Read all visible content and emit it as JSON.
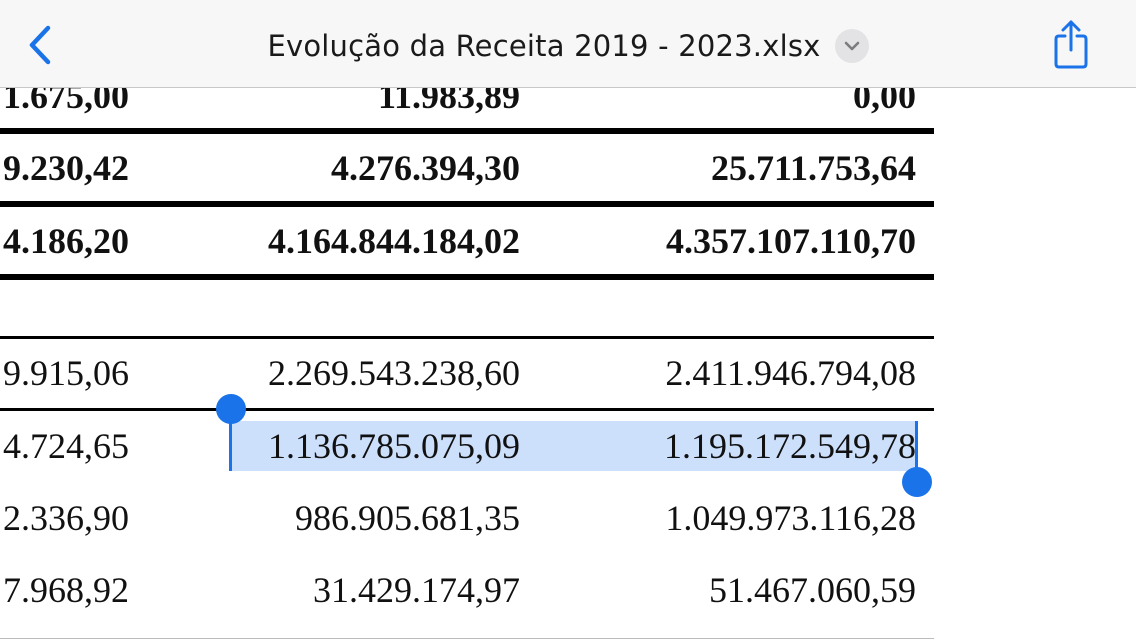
{
  "navbar": {
    "title": "Evolução da Receita 2019 - 2023.xlsx",
    "back_icon": "chevron-left-icon",
    "menu_icon": "chevron-down-icon",
    "share_icon": "share-icon",
    "accent_color": "#1a73e8"
  },
  "sheet": {
    "rows": [
      {
        "cells": [
          "1.675,00",
          "11.983,89",
          "0,00"
        ],
        "bold": true
      },
      {
        "cells": [
          "9.230,42",
          "4.276.394,30",
          "25.711.753,64"
        ],
        "bold": true
      },
      {
        "cells": [
          "4.186,20",
          "4.164.844.184,02",
          "4.357.107.110,70"
        ],
        "bold": true
      },
      {
        "cells": [
          "",
          "",
          ""
        ],
        "bold": false
      },
      {
        "cells": [
          "9.915,06",
          "2.269.543.238,60",
          "2.411.946.794,08"
        ],
        "bold": false
      },
      {
        "cells": [
          "4.724,65",
          "1.136.785.075,09",
          "1.195.172.549,78"
        ],
        "bold": false,
        "selected": true
      },
      {
        "cells": [
          "2.336,90",
          "986.905.681,35",
          "1.049.973.116,28"
        ],
        "bold": false
      },
      {
        "cells": [
          "7.968,92",
          "31.429.174,97",
          "51.467.060,59"
        ],
        "bold": false
      }
    ],
    "selection_color": "#78aaf5"
  }
}
